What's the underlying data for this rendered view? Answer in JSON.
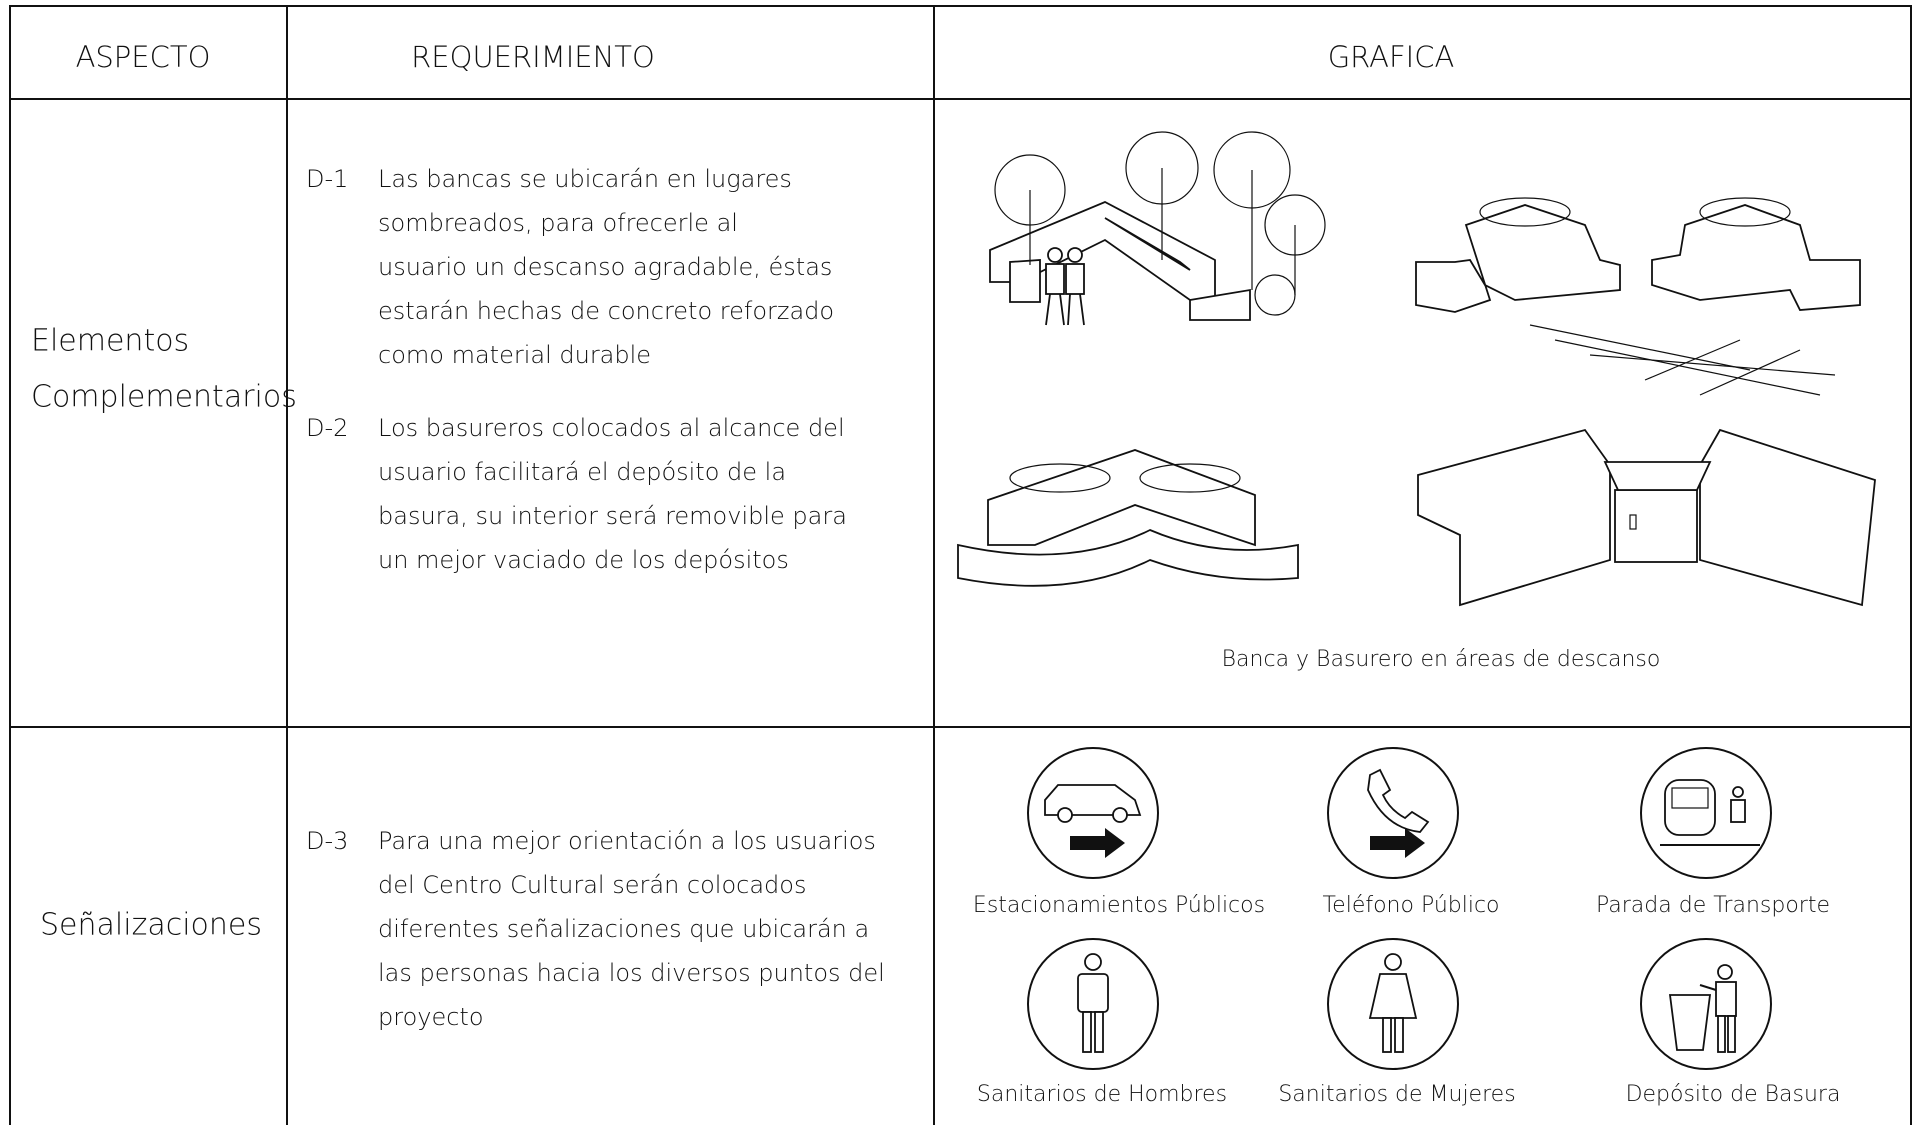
{
  "table": {
    "headers": [
      "ASPECTO",
      "REQUERIMIENTO",
      "GRAFICA"
    ],
    "rows": [
      {
        "aspect": [
          "Elementos",
          "Complementarios"
        ],
        "requirements": [
          {
            "code": "D-1",
            "lines": [
              "Las bancas se ubicarán en lugares",
              "sombreados, para ofrecerle al",
              "usuario un descanso agradable, éstas",
              "estarán hechas de concreto reforzado",
              "como material durable"
            ]
          },
          {
            "code": "D-2",
            "lines": [
              "Los basureros colocados al alcance del",
              "usuario facilitará el depósito de la",
              "basura, su interior será removible para",
              "un mejor vaciado de  los depósitos"
            ]
          }
        ],
        "captions": [
          "Banca y Basurero en áreas de descanso"
        ]
      },
      {
        "aspect": [
          "Señalizaciones"
        ],
        "requirements": [
          {
            "code": "D-3",
            "lines": [
              "Para una mejor orientación a los usuarios",
              "del Centro Cultural serán colocados",
              "diferentes señalizaciones que ubicarán a",
              "las personas hacia los diversos puntos del",
              "proyecto"
            ]
          }
        ],
        "captions": [
          "Estacionamientos Públicos",
          "Teléfono Público",
          "Parada de Transporte",
          "Sanitarios de Hombres",
          "Sanitarios de Mujeres",
          "Depósito de Basura"
        ]
      }
    ]
  }
}
